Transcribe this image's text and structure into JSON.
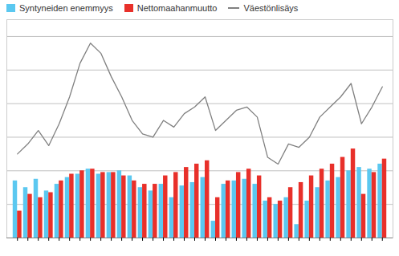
{
  "chart_data": {
    "type": "bar",
    "categories": [
      null,
      null,
      null,
      null,
      null,
      null,
      null,
      null,
      null,
      null,
      null,
      null,
      null,
      null,
      null,
      null,
      null,
      null,
      null,
      null,
      null,
      null,
      null,
      null,
      null,
      null,
      null,
      null,
      null,
      null,
      null,
      null,
      null,
      null,
      null,
      null
    ],
    "series": [
      {
        "name": "Syntyneiden enemmyys",
        "type": "bar",
        "color": "#5BC8F0",
        "values": [
          1700,
          1500,
          1750,
          1400,
          1600,
          1800,
          1900,
          2050,
          1900,
          1950,
          2000,
          1850,
          1500,
          1400,
          1600,
          1200,
          1550,
          1650,
          1800,
          500,
          1600,
          1700,
          1750,
          1600,
          1100,
          1000,
          1200,
          400,
          1100,
          1500,
          1700,
          1800,
          2000,
          2100,
          2050,
          2200
        ]
      },
      {
        "name": "Nettomaahanmuutto",
        "type": "bar",
        "color": "#E8302A",
        "values": [
          800,
          1300,
          1200,
          1350,
          1700,
          1900,
          2000,
          2050,
          1950,
          1950,
          1850,
          1700,
          1600,
          1600,
          1850,
          1950,
          2100,
          2200,
          2300,
          1200,
          1700,
          1950,
          2050,
          1850,
          1200,
          1100,
          1500,
          1650,
          1850,
          2050,
          2200,
          2400,
          2650,
          1300,
          1950,
          2350
        ]
      },
      {
        "name": "Väestönlisäys",
        "type": "line",
        "color": "#808080",
        "values": [
          2500,
          2800,
          3200,
          2750,
          3400,
          4200,
          5200,
          5800,
          5500,
          4800,
          4200,
          3500,
          3100,
          3000,
          3500,
          3300,
          3700,
          3900,
          4200,
          3200,
          3500,
          3800,
          3900,
          3600,
          2400,
          2200,
          2800,
          2700,
          3000,
          3600,
          3900,
          4200,
          4600,
          3400,
          3900,
          4500
        ]
      }
    ],
    "ylim": [
      0,
      6500
    ],
    "yticks": [
      1000,
      2000,
      3000,
      4000,
      5000,
      6000
    ],
    "grid": true,
    "tick_labels": false,
    "legend": "upper left"
  }
}
